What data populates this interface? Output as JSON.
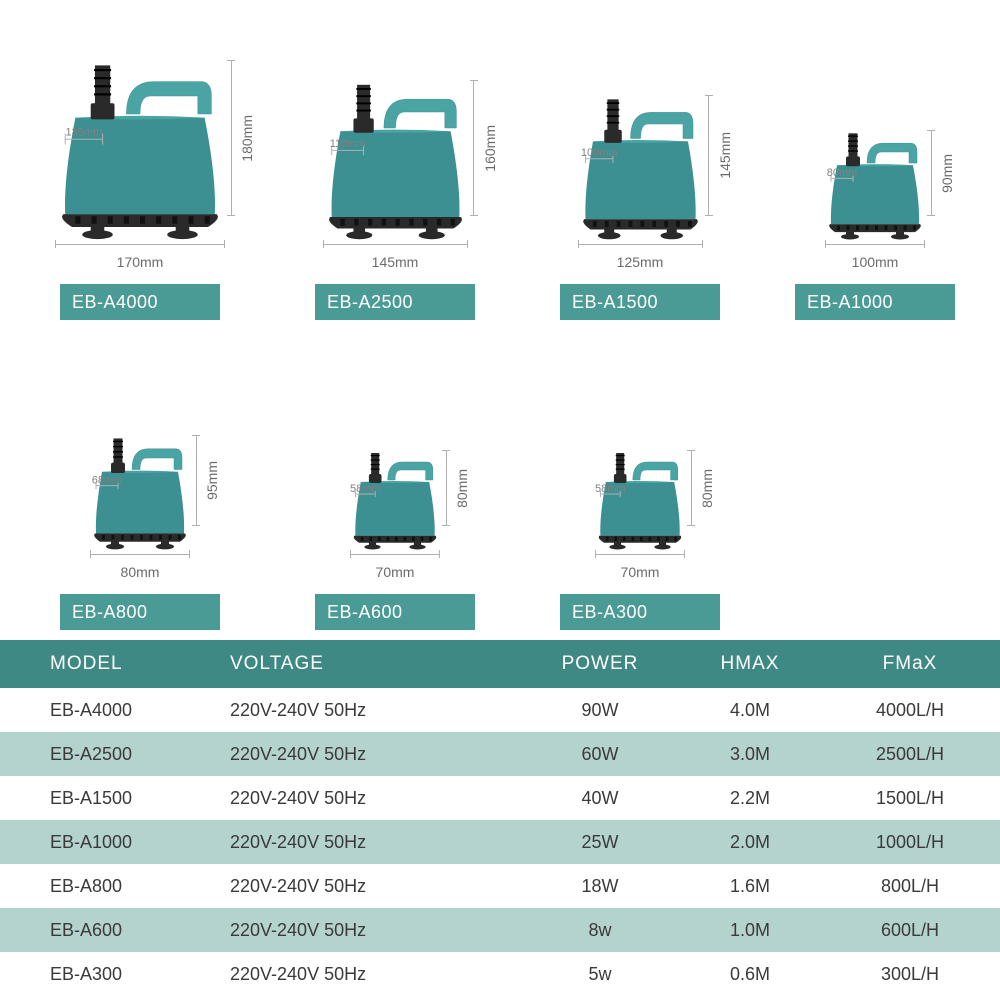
{
  "colors": {
    "accent": "#4a9a96",
    "accent_dark": "#3f8985",
    "row_tint": "#b4d2ce",
    "row_white": "#ffffff",
    "pump_body": "#3c9092",
    "pump_body_light": "#4aa4a4",
    "pump_black": "#2a2a2a",
    "dim_text": "#6b6b6b",
    "table_text": "#3a3a3a"
  },
  "products_row1": [
    {
      "model": "EB-A4000",
      "h": "180mm",
      "w": "170mm",
      "outlet": "135mm",
      "pw": 170,
      "ph": 180
    },
    {
      "model": "EB-A2500",
      "h": "160mm",
      "w": "145mm",
      "outlet": "110mm",
      "pw": 145,
      "ph": 160
    },
    {
      "model": "EB-A1500",
      "h": "145mm",
      "w": "125mm",
      "outlet": "100mm",
      "pw": 125,
      "ph": 145
    },
    {
      "model": "EB-A1000",
      "h": "90mm",
      "w": "100mm",
      "outlet": "80mm",
      "pw": 100,
      "ph": 110
    }
  ],
  "products_row2": [
    {
      "model": "EB-A800",
      "h": "95mm",
      "w": "80mm",
      "outlet": "68mm",
      "pw": 100,
      "ph": 115
    },
    {
      "model": "EB-A600",
      "h": "80mm",
      "w": "70mm",
      "outlet": "58mm",
      "pw": 90,
      "ph": 100
    },
    {
      "model": "EB-A300",
      "h": "80mm",
      "w": "70mm",
      "outlet": "58mm",
      "pw": 90,
      "ph": 100
    }
  ],
  "table": {
    "columns": [
      "MODEL",
      "VOLTAGE",
      "POWER",
      "HMAX",
      "FMaX"
    ],
    "rows": [
      [
        "EB-A4000",
        "220V-240V 50Hz",
        "90W",
        "4.0M",
        "4000L/H"
      ],
      [
        "EB-A2500",
        "220V-240V 50Hz",
        "60W",
        "3.0M",
        "2500L/H"
      ],
      [
        "EB-A1500",
        "220V-240V 50Hz",
        "40W",
        "2.2M",
        "1500L/H"
      ],
      [
        "EB-A1000",
        "220V-240V 50Hz",
        "25W",
        "2.0M",
        "1000L/H"
      ],
      [
        "EB-A800",
        "220V-240V 50Hz",
        "18W",
        "1.6M",
        "800L/H"
      ],
      [
        "EB-A600",
        "220V-240V 50Hz",
        "8w",
        "1.0M",
        "600L/H"
      ],
      [
        "EB-A300",
        "220V-240V 50Hz",
        "5w",
        "0.6M",
        "300L/H"
      ]
    ]
  },
  "layout": {
    "row1_cell_widths": [
      260,
      250,
      240,
      230
    ],
    "row2_cell_widths": [
      260,
      250,
      240
    ]
  }
}
